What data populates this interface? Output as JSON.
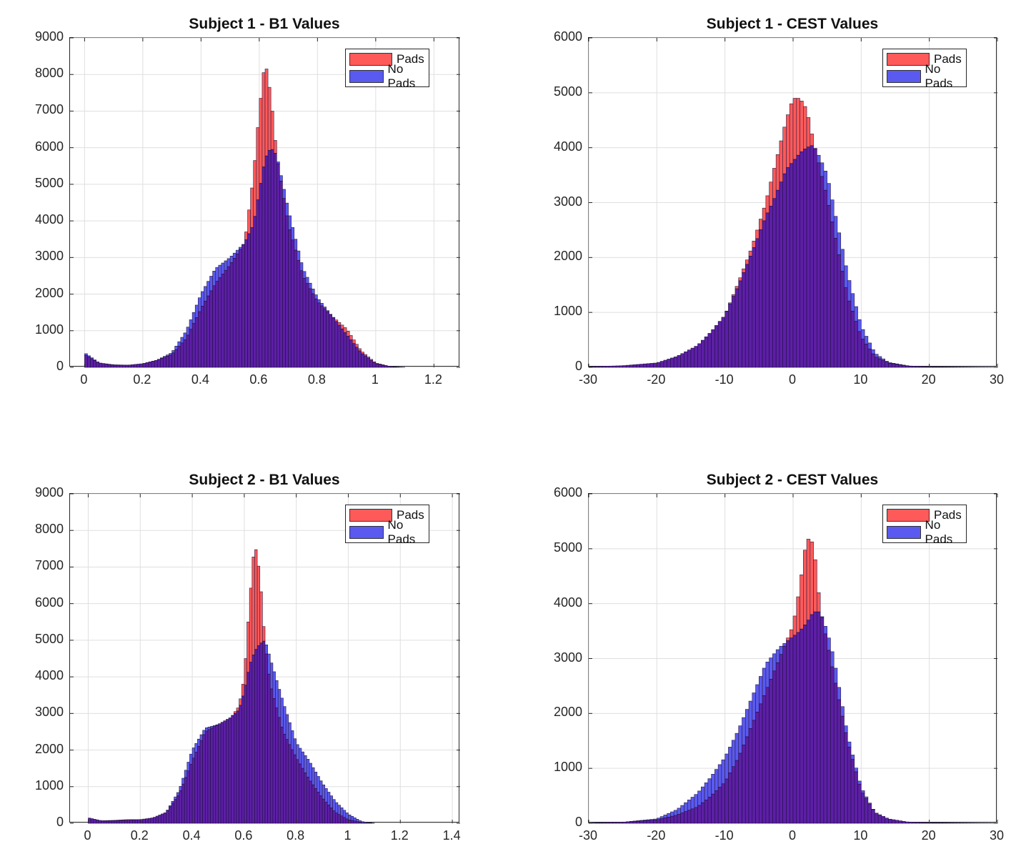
{
  "colors": {
    "pads": "#FF5A5A",
    "no_pads": "#5A5AF0",
    "overlap": "#5D1FA6",
    "grid": "#DFDFDF",
    "axis": "#262626"
  },
  "chart_data": [
    {
      "type": "bar",
      "title": "Subject 1 - B1 Values",
      "xlim": [
        -0.05,
        1.29
      ],
      "ylim": [
        0,
        9000
      ],
      "xticks": [
        0,
        0.2,
        0.4,
        0.6,
        0.8,
        1,
        1.2
      ],
      "xtick_labels": [
        "0",
        "0.2",
        "0.4",
        "0.6",
        "0.8",
        "1",
        "1.2"
      ],
      "yticks": [
        0,
        1000,
        2000,
        3000,
        4000,
        5000,
        6000,
        7000,
        8000,
        9000
      ],
      "ytick_labels": [
        "0",
        "1000",
        "2000",
        "3000",
        "4000",
        "5000",
        "6000",
        "7000",
        "8000",
        "9000"
      ],
      "bin_width": 0.01,
      "legend": [
        "Pads",
        "No Pads"
      ],
      "legend_position": "top-right",
      "series": [
        {
          "name": "Pads",
          "x": [
            0.0,
            0.05,
            0.1,
            0.15,
            0.2,
            0.25,
            0.3,
            0.35,
            0.4,
            0.45,
            0.5,
            0.55,
            0.58,
            0.6,
            0.62,
            0.64,
            0.66,
            0.7,
            0.75,
            0.8,
            0.85,
            0.9,
            0.95,
            1.0,
            1.05,
            1.1
          ],
          "y": [
            350,
            120,
            60,
            60,
            100,
            200,
            350,
            800,
            1600,
            2300,
            2800,
            3400,
            5200,
            7000,
            8400,
            7400,
            5800,
            3900,
            2500,
            1800,
            1400,
            1050,
            450,
            120,
            20,
            0
          ]
        },
        {
          "name": "No Pads",
          "x": [
            0.0,
            0.05,
            0.1,
            0.15,
            0.2,
            0.25,
            0.3,
            0.35,
            0.4,
            0.45,
            0.5,
            0.55,
            0.58,
            0.6,
            0.62,
            0.64,
            0.66,
            0.7,
            0.75,
            0.8,
            0.85,
            0.9,
            0.95,
            1.0,
            1.05,
            1.1
          ],
          "y": [
            400,
            120,
            70,
            60,
            100,
            200,
            400,
            1000,
            2000,
            2700,
            3000,
            3400,
            3900,
            4800,
            5700,
            6000,
            5800,
            4300,
            2700,
            1900,
            1400,
            900,
            400,
            100,
            20,
            0
          ]
        }
      ]
    },
    {
      "type": "bar",
      "title": "Subject 1 - CEST Values",
      "xlim": [
        -30,
        30
      ],
      "ylim": [
        0,
        6000
      ],
      "xticks": [
        -30,
        -20,
        -10,
        0,
        10,
        20,
        30
      ],
      "xtick_labels": [
        "-30",
        "-20",
        "-10",
        "0",
        "10",
        "20",
        "30"
      ],
      "yticks": [
        0,
        1000,
        2000,
        3000,
        4000,
        5000,
        6000
      ],
      "ytick_labels": [
        "0",
        "1000",
        "2000",
        "3000",
        "4000",
        "5000",
        "6000"
      ],
      "bin_width": 0.5,
      "legend": [
        "Pads",
        "No Pads"
      ],
      "legend_position": "top-right",
      "series": [
        {
          "name": "Pads",
          "x": [
            -30,
            -25,
            -20,
            -17,
            -14,
            -12,
            -10,
            -8,
            -6,
            -4,
            -3,
            -2,
            -1,
            0,
            1,
            2,
            3,
            4,
            5,
            6,
            7,
            8,
            10,
            12,
            14,
            17,
            20,
            25,
            30
          ],
          "y": [
            10,
            30,
            80,
            200,
            400,
            650,
            950,
            1550,
            2200,
            3000,
            3500,
            4000,
            4500,
            4900,
            4900,
            4700,
            4100,
            3600,
            3100,
            2500,
            1900,
            1300,
            560,
            200,
            80,
            20,
            10,
            5,
            0
          ]
        },
        {
          "name": "No Pads",
          "x": [
            -30,
            -25,
            -20,
            -17,
            -14,
            -12,
            -10,
            -8,
            -6,
            -4,
            -3,
            -2,
            -1,
            0,
            1,
            2,
            3,
            4,
            5,
            6,
            7,
            8,
            10,
            12,
            14,
            17,
            20,
            25,
            30
          ],
          "y": [
            10,
            30,
            80,
            200,
            400,
            650,
            950,
            1500,
            2100,
            2750,
            3000,
            3300,
            3600,
            3750,
            3900,
            4000,
            4050,
            3800,
            3500,
            2900,
            2300,
            1700,
            750,
            260,
            90,
            25,
            10,
            5,
            0
          ]
        }
      ]
    },
    {
      "type": "bar",
      "title": "Subject 2 - B1 Values",
      "xlim": [
        -0.07,
        1.43
      ],
      "ylim": [
        0,
        9000
      ],
      "xticks": [
        0,
        0.2,
        0.4,
        0.6,
        0.8,
        1,
        1.2,
        1.4
      ],
      "xtick_labels": [
        "0",
        "0.2",
        "0.4",
        "0.6",
        "0.8",
        "1",
        "1.2",
        "1.4"
      ],
      "yticks": [
        0,
        1000,
        2000,
        3000,
        4000,
        5000,
        6000,
        7000,
        8000,
        9000
      ],
      "ytick_labels": [
        "0",
        "1000",
        "2000",
        "3000",
        "4000",
        "5000",
        "6000",
        "7000",
        "8000",
        "9000"
      ],
      "bin_width": 0.01,
      "legend": [
        "Pads",
        "No Pads"
      ],
      "legend_position": "top-right",
      "series": [
        {
          "name": "Pads",
          "x": [
            0.0,
            0.05,
            0.1,
            0.15,
            0.2,
            0.25,
            0.3,
            0.35,
            0.4,
            0.45,
            0.5,
            0.55,
            0.58,
            0.6,
            0.62,
            0.64,
            0.66,
            0.68,
            0.7,
            0.75,
            0.8,
            0.85,
            0.9,
            0.95,
            1.0,
            1.05,
            1.1
          ],
          "y": [
            150,
            70,
            80,
            100,
            100,
            150,
            300,
            800,
            1700,
            2500,
            2700,
            2900,
            3200,
            4000,
            6000,
            7700,
            6800,
            4900,
            3800,
            2500,
            1800,
            1200,
            700,
            300,
            100,
            20,
            0
          ]
        },
        {
          "name": "No Pads",
          "x": [
            0.0,
            0.05,
            0.1,
            0.15,
            0.2,
            0.25,
            0.3,
            0.35,
            0.4,
            0.45,
            0.5,
            0.55,
            0.58,
            0.6,
            0.62,
            0.64,
            0.66,
            0.68,
            0.7,
            0.75,
            0.8,
            0.85,
            0.9,
            0.95,
            1.0,
            1.05,
            1.1
          ],
          "y": [
            150,
            70,
            70,
            80,
            100,
            150,
            300,
            900,
            2000,
            2600,
            2700,
            2900,
            3100,
            3600,
            4300,
            4700,
            4900,
            5000,
            4500,
            3300,
            2200,
            1700,
            1100,
            600,
            250,
            50,
            0
          ]
        }
      ]
    },
    {
      "type": "bar",
      "title": "Subject 2 - CEST Values",
      "xlim": [
        -30,
        30
      ],
      "ylim": [
        0,
        6000
      ],
      "xticks": [
        -30,
        -20,
        -10,
        0,
        10,
        20,
        30
      ],
      "xtick_labels": [
        "-30",
        "-20",
        "-10",
        "0",
        "10",
        "20",
        "30"
      ],
      "yticks": [
        0,
        1000,
        2000,
        3000,
        4000,
        5000,
        6000
      ],
      "ytick_labels": [
        "0",
        "1000",
        "2000",
        "3000",
        "4000",
        "5000",
        "6000"
      ],
      "bin_width": 0.5,
      "legend": [
        "Pads",
        "No Pads"
      ],
      "legend_position": "top-right",
      "series": [
        {
          "name": "Pads",
          "x": [
            -30,
            -25,
            -20,
            -17,
            -14,
            -12,
            -10,
            -8,
            -6,
            -4,
            -2,
            0,
            1,
            2,
            3,
            4,
            5,
            6,
            7,
            8,
            10,
            12,
            14,
            17,
            20,
            25,
            30
          ],
          "y": [
            5,
            20,
            60,
            150,
            300,
            500,
            750,
            1200,
            1800,
            2400,
            3000,
            3600,
            4300,
            5200,
            5100,
            3900,
            3300,
            2700,
            2100,
            1500,
            600,
            200,
            80,
            20,
            10,
            5,
            0
          ]
        },
        {
          "name": "No Pads",
          "x": [
            -30,
            -25,
            -20,
            -17,
            -14,
            -12,
            -10,
            -8,
            -6,
            -4,
            -2,
            0,
            1,
            2,
            3,
            4,
            5,
            6,
            7,
            8,
            10,
            12,
            14,
            17,
            20,
            25,
            30
          ],
          "y": [
            5,
            20,
            80,
            250,
            550,
            850,
            1200,
            1700,
            2300,
            2900,
            3200,
            3400,
            3500,
            3650,
            3850,
            3850,
            3500,
            3000,
            2300,
            1600,
            650,
            200,
            80,
            20,
            10,
            5,
            0
          ]
        }
      ]
    }
  ]
}
